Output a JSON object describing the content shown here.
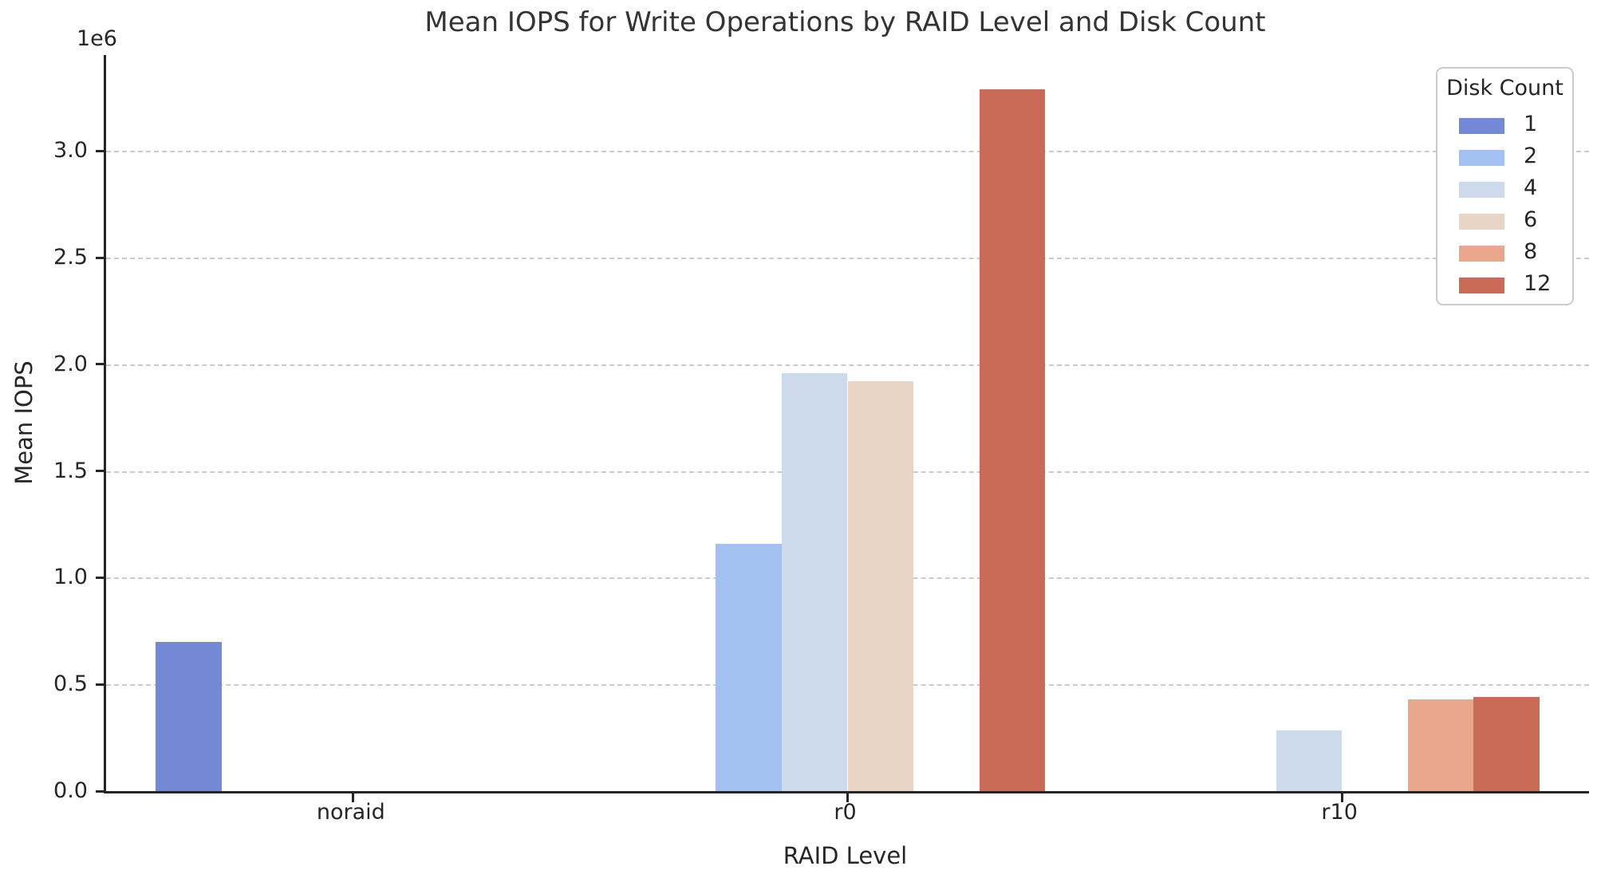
{
  "figure": {
    "background": "#ffffff",
    "text_color": "#262626",
    "grid_color": "#cbcbcb"
  },
  "chart_data": {
    "type": "bar",
    "title": "Mean IOPS for Write Operations by RAID Level and Disk Count",
    "xlabel": "RAID Level",
    "ylabel": "Mean IOPS",
    "offset_text": "1e6",
    "categories": [
      "noraid",
      "r0",
      "r10"
    ],
    "series": [
      {
        "name": "1",
        "color": "#7389d8",
        "values": [
          700000,
          null,
          null
        ]
      },
      {
        "name": "2",
        "color": "#a3c1f2",
        "values": [
          null,
          1160000,
          null
        ]
      },
      {
        "name": "4",
        "color": "#cdd9ec",
        "values": [
          null,
          1960000,
          285000
        ]
      },
      {
        "name": "6",
        "color": "#e9d5c6",
        "values": [
          null,
          1920000,
          null
        ]
      },
      {
        "name": "8",
        "color": "#eaa78c",
        "values": [
          null,
          null,
          430000
        ]
      },
      {
        "name": "12",
        "color": "#ca6b58",
        "values": [
          null,
          3290000,
          440000
        ]
      }
    ],
    "ylim": [
      0,
      3450000
    ],
    "y_ticks": [
      {
        "label": "0.0",
        "value": 0
      },
      {
        "label": "0.5",
        "value": 500000
      },
      {
        "label": "1.0",
        "value": 1000000
      },
      {
        "label": "1.5",
        "value": 1500000
      },
      {
        "label": "2.0",
        "value": 2000000
      },
      {
        "label": "2.5",
        "value": 2500000
      },
      {
        "label": "3.0",
        "value": 3000000
      }
    ],
    "grid": "horizontal dashed, behind bars",
    "group_width_fraction": 0.8,
    "legend": {
      "title": "Disk Count",
      "position": "upper right"
    }
  }
}
